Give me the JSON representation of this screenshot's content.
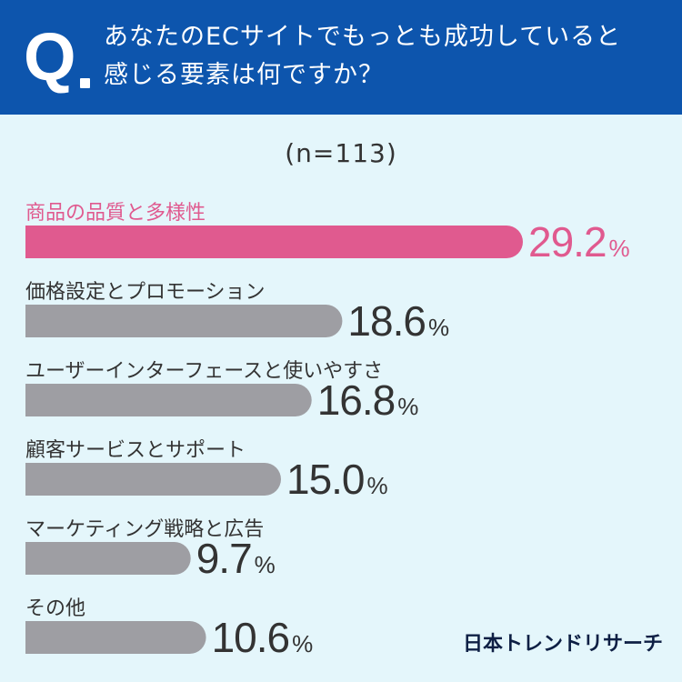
{
  "header": {
    "q_mark": "Q",
    "question_line1": "あなたのECサイトでもっとも成功していると",
    "question_line2": "感じる要素は何ですか？"
  },
  "colors": {
    "header_bg": "#0d55ad",
    "background": "#e4f6fb",
    "highlight": "#e05a8f",
    "bar_default": "#9e9ea3",
    "value_text": "#333333"
  },
  "chart_data": {
    "type": "bar",
    "orientation": "horizontal",
    "subtitle": "(n=113)",
    "unit": "%",
    "categories": [
      "商品の品質と多様性",
      "価格設定とプロモーション",
      "ユーザーインターフェースと使いやすさ",
      "顧客サービスとサポート",
      "マーケティング戦略と広告",
      "その他"
    ],
    "values": [
      29.2,
      18.6,
      16.8,
      15.0,
      9.7,
      10.6
    ],
    "value_labels": [
      "29.2",
      "18.6",
      "16.8",
      "15.0",
      "9.7",
      "10.6"
    ],
    "highlight_index": 0,
    "xlim": [
      0,
      29.2
    ]
  },
  "brand": "日本トレンドリサーチ"
}
